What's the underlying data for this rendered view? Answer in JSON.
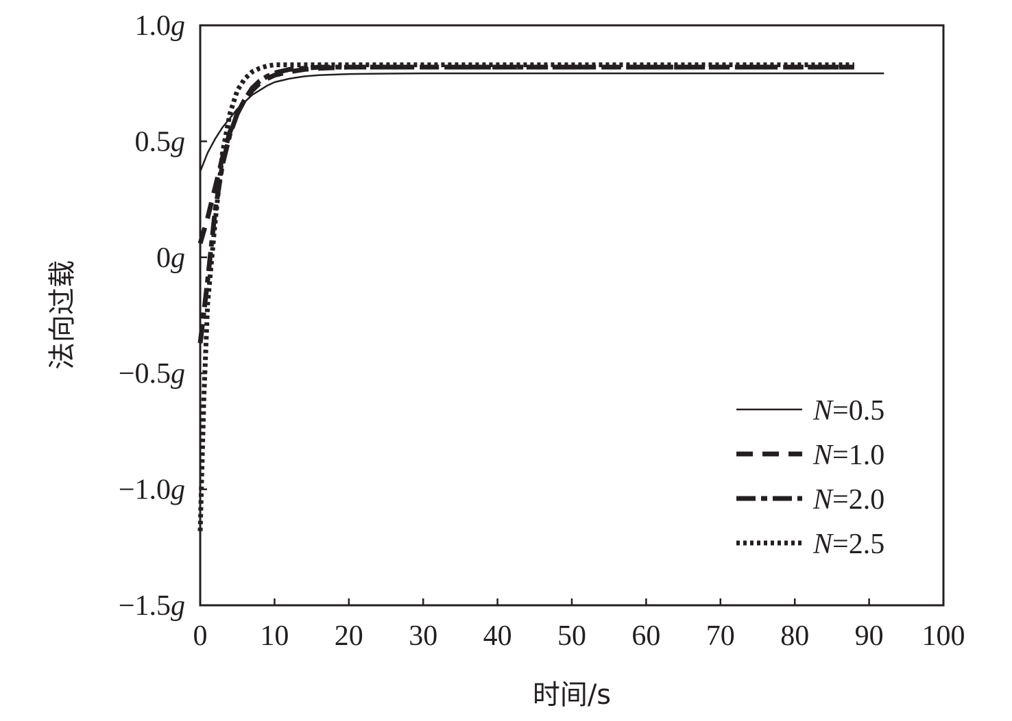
{
  "chart_data": {
    "type": "line",
    "title": "",
    "xlabel": "时间/s",
    "ylabel": "法向过载",
    "xlim": [
      0,
      100
    ],
    "ylim": [
      -1.5,
      1.0
    ],
    "x_ticks": [
      0,
      10,
      20,
      30,
      40,
      50,
      60,
      70,
      80,
      90,
      100
    ],
    "x_tick_labels": [
      "0",
      "10",
      "20",
      "30",
      "40",
      "50",
      "60",
      "70",
      "80",
      "90",
      "100"
    ],
    "y_ticks": [
      1.0,
      0.5,
      0.0,
      -0.5,
      -1.0,
      -1.5
    ],
    "y_tick_labels": [
      {
        "num": "1.0",
        "unit": "g"
      },
      {
        "num": "0.5",
        "unit": "g"
      },
      {
        "num": "0",
        "unit": "g"
      },
      {
        "num": "−0.5",
        "unit": "g"
      },
      {
        "num": "−1.0",
        "unit": "g"
      },
      {
        "num": "−1.5",
        "unit": "g"
      }
    ],
    "grid": false,
    "legend_position": "bottom-right",
    "series": [
      {
        "name": "N=0.5",
        "legend_var": "N",
        "legend_value": "=0.5",
        "style": "solid",
        "color": "#231f20",
        "x": [
          0,
          1,
          2,
          3,
          4,
          5,
          6,
          7,
          8,
          9,
          10,
          12,
          14,
          16,
          20,
          25,
          30,
          40,
          50,
          60,
          70,
          80,
          92
        ],
        "y": [
          0.37,
          0.45,
          0.51,
          0.56,
          0.6,
          0.64,
          0.67,
          0.7,
          0.72,
          0.74,
          0.755,
          0.77,
          0.78,
          0.785,
          0.79,
          0.792,
          0.793,
          0.793,
          0.793,
          0.793,
          0.793,
          0.793,
          0.793
        ]
      },
      {
        "name": "N=1.0",
        "legend_var": "N",
        "legend_value": "=1.0",
        "style": "dashed",
        "color": "#231f20",
        "x": [
          0,
          1,
          2,
          3,
          4,
          5,
          6,
          7,
          8,
          9,
          10,
          12,
          14,
          16,
          20,
          25,
          30,
          40,
          50,
          60,
          70,
          80,
          88
        ],
        "y": [
          0.06,
          0.17,
          0.3,
          0.43,
          0.54,
          0.62,
          0.68,
          0.72,
          0.75,
          0.77,
          0.785,
          0.8,
          0.81,
          0.815,
          0.82,
          0.82,
          0.82,
          0.82,
          0.82,
          0.82,
          0.82,
          0.82,
          0.82
        ]
      },
      {
        "name": "N=2.0",
        "legend_var": "N",
        "legend_value": "=2.0",
        "style": "dashdot",
        "color": "#231f20",
        "x": [
          0,
          1,
          2,
          3,
          4,
          5,
          6,
          7,
          8,
          9,
          10,
          12,
          14,
          16,
          20,
          25,
          30,
          40,
          50,
          60,
          70,
          80,
          88
        ],
        "y": [
          -0.37,
          -0.1,
          0.2,
          0.4,
          0.53,
          0.62,
          0.68,
          0.73,
          0.76,
          0.78,
          0.795,
          0.81,
          0.815,
          0.82,
          0.82,
          0.82,
          0.82,
          0.82,
          0.82,
          0.82,
          0.82,
          0.82,
          0.82
        ]
      },
      {
        "name": "N=2.5",
        "legend_var": "N",
        "legend_value": "=2.5",
        "style": "dotted",
        "color": "#231f20",
        "x": [
          0,
          0.5,
          1,
          2,
          3,
          4,
          5,
          6,
          7,
          8,
          9,
          10,
          12,
          15,
          20,
          30,
          40,
          50,
          60,
          70,
          80,
          88
        ],
        "y": [
          -1.18,
          -0.6,
          -0.2,
          0.15,
          0.45,
          0.62,
          0.72,
          0.77,
          0.8,
          0.815,
          0.825,
          0.83,
          0.83,
          0.83,
          0.83,
          0.83,
          0.83,
          0.83,
          0.83,
          0.83,
          0.83,
          0.83
        ]
      }
    ]
  }
}
